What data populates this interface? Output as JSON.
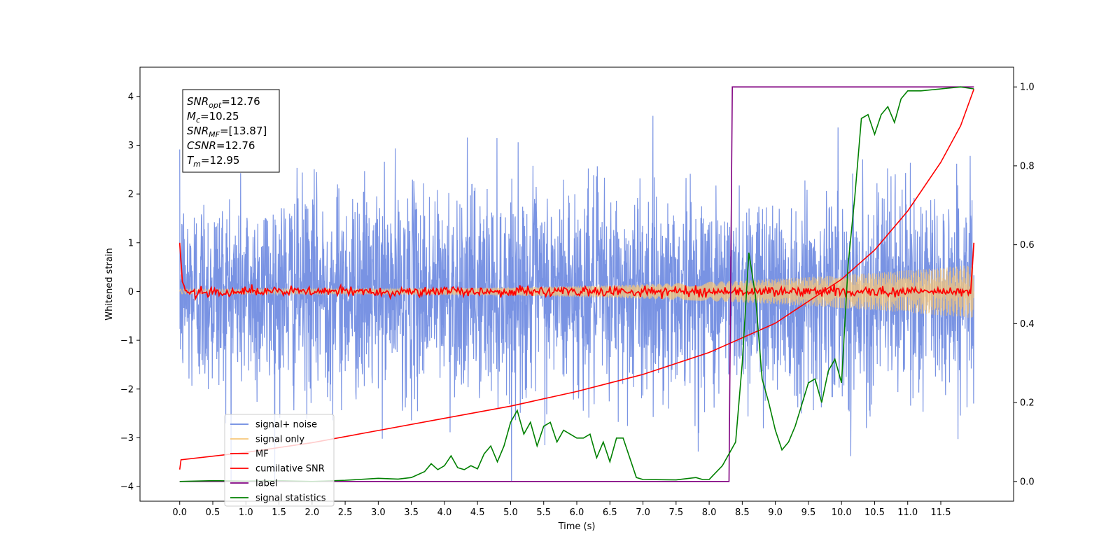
{
  "chart_data": {
    "type": "line",
    "title": "",
    "xlabel": "Time (s)",
    "ylabel": "Whitened strain",
    "y2label": "",
    "xlim": [
      -0.6,
      12.6
    ],
    "ylim": [
      -4.3,
      4.6
    ],
    "y2lim": [
      -0.05,
      1.05
    ],
    "x_ticks": [
      "0.0",
      "0.5",
      "1.0",
      "1.5",
      "2.0",
      "2.5",
      "3.0",
      "3.5",
      "4.0",
      "4.5",
      "5.0",
      "5.5",
      "6.0",
      "6.5",
      "7.0",
      "7.5",
      "8.0",
      "8.5",
      "9.0",
      "9.5",
      "10.0",
      "10.5",
      "11.0",
      "11.5"
    ],
    "y_ticks": [
      "4",
      "3",
      "2",
      "1",
      "0",
      "−1",
      "−2",
      "−3",
      "−4"
    ],
    "y2_ticks": [
      "1.0",
      "0.8",
      "0.6",
      "0.4",
      "0.2",
      "0.0"
    ],
    "legend_position": "lower-left",
    "info_box": [
      {
        "base": "SNR",
        "sub": "opt",
        "rest": "=12.76"
      },
      {
        "base": "M",
        "sub": "c",
        "rest": "=10.25"
      },
      {
        "base": "SNR",
        "sub": "MF",
        "rest": "=[13.87]"
      },
      {
        "base": "CSNR",
        "sub": "",
        "rest": "=12.76"
      },
      {
        "base": "T",
        "sub": "m",
        "rest": "=12.95"
      }
    ],
    "series": [
      {
        "name": "signal+ noise",
        "color": "#6a87e0",
        "axis": "left",
        "kind": "noise",
        "x_range": [
          0,
          12
        ],
        "amplitude_std": 1.0
      },
      {
        "name": "signal only",
        "color": "#f7c77a",
        "axis": "left",
        "kind": "chirp",
        "x_range": [
          0,
          12
        ],
        "amplitude_start": 0.05,
        "amplitude_end": 0.55
      },
      {
        "name": "MF",
        "color": "#ff0000",
        "axis": "left",
        "kind": "mf",
        "points": [
          [
            0.0,
            1.0
          ],
          [
            0.05,
            0.1
          ],
          [
            0.1,
            0.05
          ],
          [
            12.0,
            0.05
          ],
          [
            12.0,
            1.0
          ]
        ]
      },
      {
        "name": "cumilative SNR",
        "color": "#ff0000",
        "axis": "left",
        "points": [
          [
            0.0,
            -3.65
          ],
          [
            0.02,
            -3.45
          ],
          [
            1,
            -3.3
          ],
          [
            2,
            -3.1
          ],
          [
            3,
            -2.85
          ],
          [
            4,
            -2.6
          ],
          [
            5,
            -2.35
          ],
          [
            6,
            -2.05
          ],
          [
            7,
            -1.7
          ],
          [
            8,
            -1.25
          ],
          [
            9,
            -0.65
          ],
          [
            10,
            0.25
          ],
          [
            10.5,
            0.85
          ],
          [
            11,
            1.65
          ],
          [
            11.5,
            2.65
          ],
          [
            11.8,
            3.4
          ],
          [
            12,
            4.15
          ]
        ]
      },
      {
        "name": "label",
        "color": "#800080",
        "axis": "right",
        "points": [
          [
            0,
            0.0
          ],
          [
            8.3,
            0.0
          ],
          [
            8.35,
            1.0
          ],
          [
            12,
            1.0
          ]
        ]
      },
      {
        "name": "signal statistics",
        "color": "#008000",
        "axis": "right",
        "points": [
          [
            0,
            0.0
          ],
          [
            0.5,
            0.002
          ],
          [
            1,
            0.001
          ],
          [
            1.5,
            0.002
          ],
          [
            2,
            0.0
          ],
          [
            2.5,
            0.003
          ],
          [
            3,
            0.008
          ],
          [
            3.3,
            0.006
          ],
          [
            3.5,
            0.01
          ],
          [
            3.7,
            0.025
          ],
          [
            3.8,
            0.045
          ],
          [
            3.9,
            0.03
          ],
          [
            4.0,
            0.04
          ],
          [
            4.1,
            0.065
          ],
          [
            4.2,
            0.035
          ],
          [
            4.3,
            0.03
          ],
          [
            4.4,
            0.04
          ],
          [
            4.5,
            0.032
          ],
          [
            4.6,
            0.07
          ],
          [
            4.7,
            0.09
          ],
          [
            4.8,
            0.05
          ],
          [
            4.9,
            0.09
          ],
          [
            5.0,
            0.15
          ],
          [
            5.1,
            0.18
          ],
          [
            5.2,
            0.12
          ],
          [
            5.3,
            0.15
          ],
          [
            5.4,
            0.09
          ],
          [
            5.5,
            0.14
          ],
          [
            5.6,
            0.15
          ],
          [
            5.7,
            0.1
          ],
          [
            5.8,
            0.13
          ],
          [
            5.9,
            0.12
          ],
          [
            6.0,
            0.11
          ],
          [
            6.1,
            0.11
          ],
          [
            6.2,
            0.12
          ],
          [
            6.3,
            0.06
          ],
          [
            6.4,
            0.1
          ],
          [
            6.5,
            0.05
          ],
          [
            6.6,
            0.11
          ],
          [
            6.7,
            0.11
          ],
          [
            6.8,
            0.06
          ],
          [
            6.9,
            0.01
          ],
          [
            7.0,
            0.005
          ],
          [
            7.5,
            0.004
          ],
          [
            7.8,
            0.01
          ],
          [
            7.9,
            0.005
          ],
          [
            8.0,
            0.005
          ],
          [
            8.2,
            0.04
          ],
          [
            8.4,
            0.1
          ],
          [
            8.5,
            0.3
          ],
          [
            8.6,
            0.58
          ],
          [
            8.7,
            0.47
          ],
          [
            8.8,
            0.26
          ],
          [
            8.9,
            0.2
          ],
          [
            9.0,
            0.13
          ],
          [
            9.1,
            0.08
          ],
          [
            9.2,
            0.1
          ],
          [
            9.3,
            0.14
          ],
          [
            9.5,
            0.25
          ],
          [
            9.6,
            0.26
          ],
          [
            9.7,
            0.2
          ],
          [
            9.8,
            0.28
          ],
          [
            9.9,
            0.31
          ],
          [
            10.0,
            0.25
          ],
          [
            10.1,
            0.55
          ],
          [
            10.2,
            0.72
          ],
          [
            10.3,
            0.92
          ],
          [
            10.4,
            0.93
          ],
          [
            10.5,
            0.88
          ],
          [
            10.6,
            0.93
          ],
          [
            10.7,
            0.95
          ],
          [
            10.8,
            0.91
          ],
          [
            10.9,
            0.97
          ],
          [
            11.0,
            0.99
          ],
          [
            11.2,
            0.99
          ],
          [
            11.5,
            0.995
          ],
          [
            11.8,
            1.0
          ],
          [
            12.0,
            0.995
          ]
        ]
      }
    ]
  }
}
